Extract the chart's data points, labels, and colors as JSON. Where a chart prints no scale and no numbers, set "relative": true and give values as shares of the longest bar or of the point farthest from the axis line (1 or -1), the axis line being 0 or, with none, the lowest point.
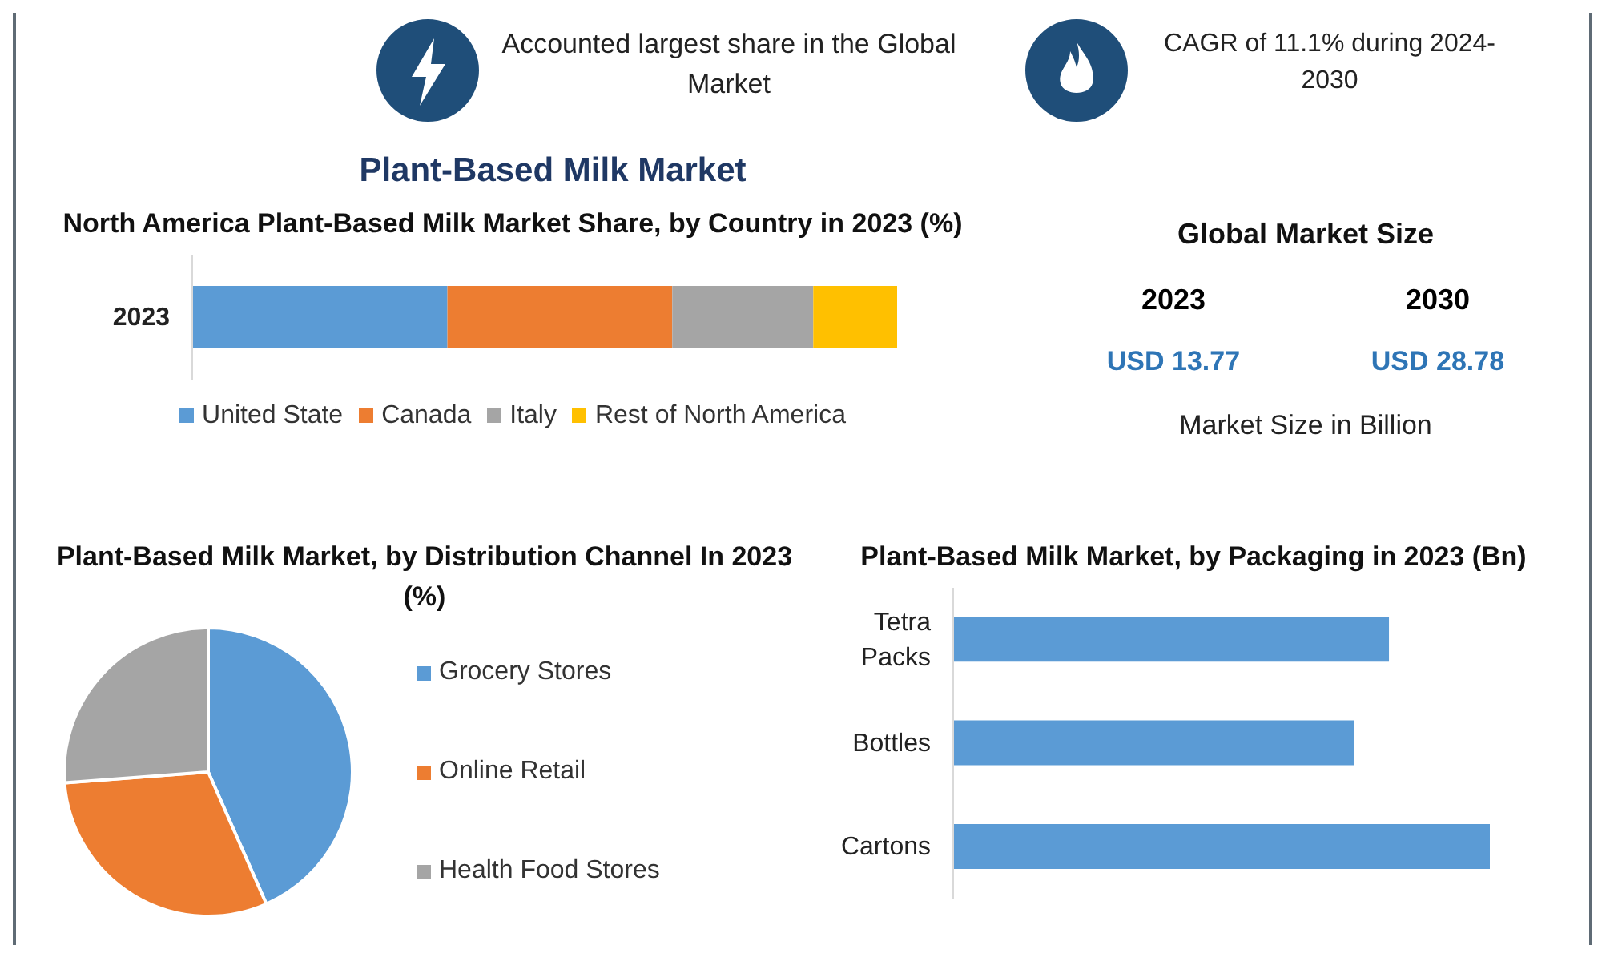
{
  "chart_data": [
    {
      "type": "other",
      "title": "Plant-Based Milk Market",
      "annotations": [
        "Accounted largest share in the Global Market",
        "CAGR of 11.1% during 2024-2030"
      ]
    },
    {
      "type": "bar",
      "title": "North America Plant-Based Milk Market Share, by Country in 2023 (%)",
      "orientation": "horizontal",
      "stacked": true,
      "relative": true,
      "legend": "bottom",
      "categories": [
        "2023"
      ],
      "series": [
        {
          "name": "United State",
          "color": "#5b9bd5",
          "values": [
            0.362
          ]
        },
        {
          "name": "Canada",
          "color": "#ed7d31",
          "values": [
            0.319
          ]
        },
        {
          "name": "Italy",
          "color": "#a5a5a5",
          "values": [
            0.2
          ]
        },
        {
          "name": "Rest of North America",
          "color": "#ffc000",
          "values": [
            0.119
          ]
        }
      ]
    },
    {
      "type": "pie",
      "title": "Plant-Based Milk Market, by Distribution Channel  In 2023 (%)",
      "legend": "right",
      "categories": [
        "Grocery Stores",
        "Online Retail",
        "Health Food Stores"
      ],
      "values": [
        43.4,
        30.4,
        26.2
      ],
      "colors": [
        "#5b9bd5",
        "#ed7d31",
        "#a5a5a5"
      ]
    },
    {
      "type": "other",
      "title": "Global Market Size",
      "annotations": [
        "2023",
        "2030",
        "USD 13.77",
        "USD 28.78",
        "Market Size in Billion"
      ]
    },
    {
      "type": "bar",
      "title": "Plant-Based Milk Market, by Packaging in 2023 (Bn)",
      "orientation": "horizontal",
      "relative": true,
      "categories": [
        "Tetra Packs",
        "Bottles",
        "Cartons"
      ],
      "values": [
        0.812,
        0.747,
        1
      ],
      "color": "#5b9bd5"
    }
  ]
}
